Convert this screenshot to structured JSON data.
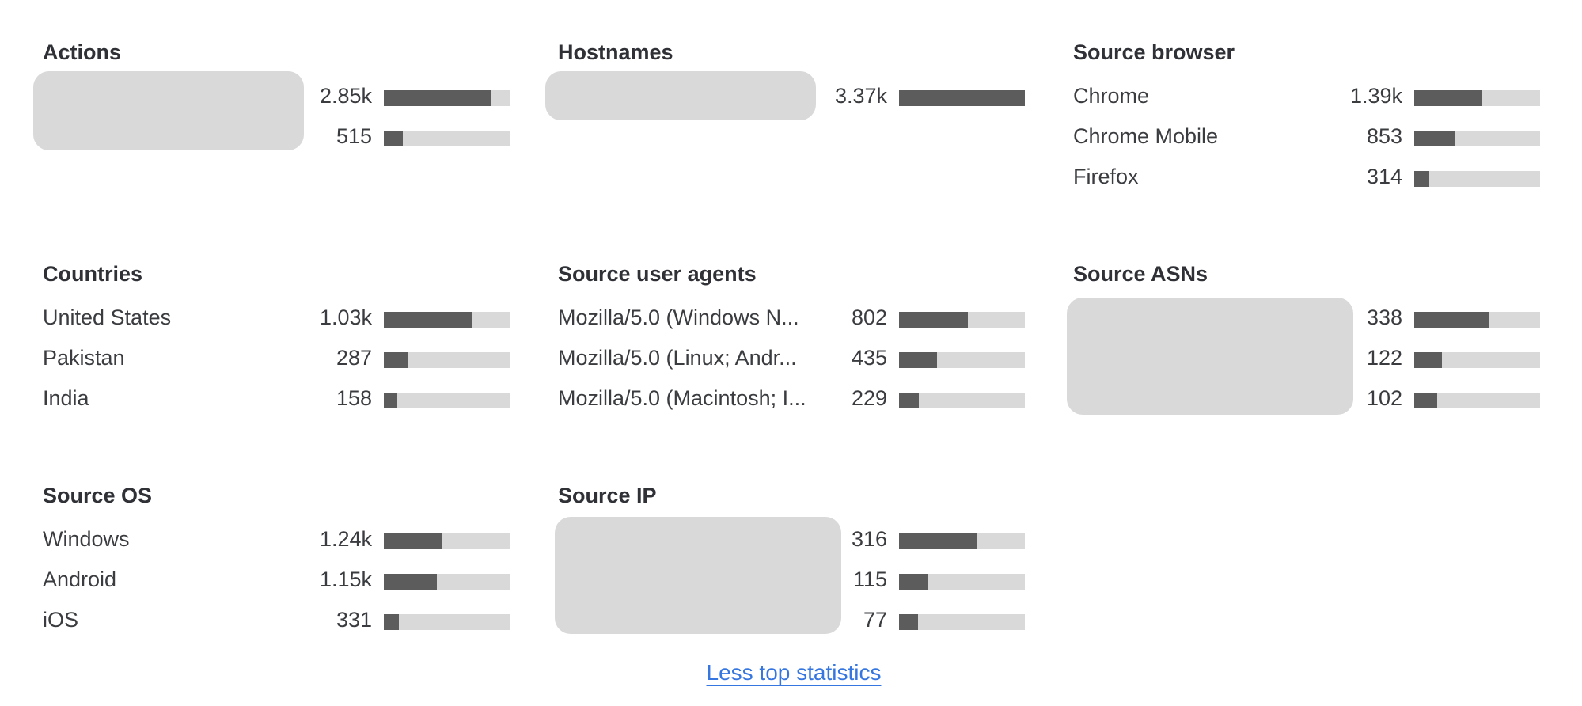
{
  "panels": [
    {
      "key": "actions",
      "title": "Actions",
      "redacted_labels": true,
      "rows": [
        {
          "label": "",
          "value": "2.85k",
          "fraction": 0.85
        },
        {
          "label": "",
          "value": "515",
          "fraction": 0.15
        }
      ]
    },
    {
      "key": "hostnames",
      "title": "Hostnames",
      "redacted_labels": true,
      "rows": [
        {
          "label": "",
          "value": "3.37k",
          "fraction": 1.0
        }
      ]
    },
    {
      "key": "source-browser",
      "title": "Source browser",
      "redacted_labels": false,
      "rows": [
        {
          "label": "Chrome",
          "value": "1.39k",
          "fraction": 0.54
        },
        {
          "label": "Chrome Mobile",
          "value": "853",
          "fraction": 0.33
        },
        {
          "label": "Firefox",
          "value": "314",
          "fraction": 0.12
        }
      ]
    },
    {
      "key": "countries",
      "title": "Countries",
      "redacted_labels": false,
      "rows": [
        {
          "label": "United States",
          "value": "1.03k",
          "fraction": 0.7
        },
        {
          "label": "Pakistan",
          "value": "287",
          "fraction": 0.19
        },
        {
          "label": "India",
          "value": "158",
          "fraction": 0.11
        }
      ]
    },
    {
      "key": "source-user-agents",
      "title": "Source user agents",
      "redacted_labels": false,
      "rows": [
        {
          "label": "Mozilla/5.0 (Windows N...",
          "value": "802",
          "fraction": 0.55
        },
        {
          "label": "Mozilla/5.0 (Linux; Andr...",
          "value": "435",
          "fraction": 0.3
        },
        {
          "label": "Mozilla/5.0 (Macintosh; I...",
          "value": "229",
          "fraction": 0.16
        }
      ]
    },
    {
      "key": "source-asns",
      "title": "Source ASNs",
      "redacted_labels": true,
      "rows": [
        {
          "label": "",
          "value": "338",
          "fraction": 0.6
        },
        {
          "label": "",
          "value": "122",
          "fraction": 0.22
        },
        {
          "label": "",
          "value": "102",
          "fraction": 0.18
        }
      ]
    },
    {
      "key": "source-os",
      "title": "Source OS",
      "redacted_labels": false,
      "rows": [
        {
          "label": "Windows",
          "value": "1.24k",
          "fraction": 0.46
        },
        {
          "label": "Android",
          "value": "1.15k",
          "fraction": 0.42
        },
        {
          "label": "iOS",
          "value": "331",
          "fraction": 0.12
        }
      ]
    },
    {
      "key": "source-ip",
      "title": "Source IP",
      "redacted_labels": true,
      "rows": [
        {
          "label": "",
          "value": "316",
          "fraction": 0.62
        },
        {
          "label": "",
          "value": "115",
          "fraction": 0.23
        },
        {
          "label": "",
          "value": "77",
          "fraction": 0.15
        }
      ]
    }
  ],
  "footer": {
    "less_label": "Less top statistics"
  },
  "colors": {
    "bar_fill": "#5c5c5c",
    "bar_track": "#d9d9d9",
    "link": "#3576e0",
    "redaction": "#d9d9d9"
  }
}
